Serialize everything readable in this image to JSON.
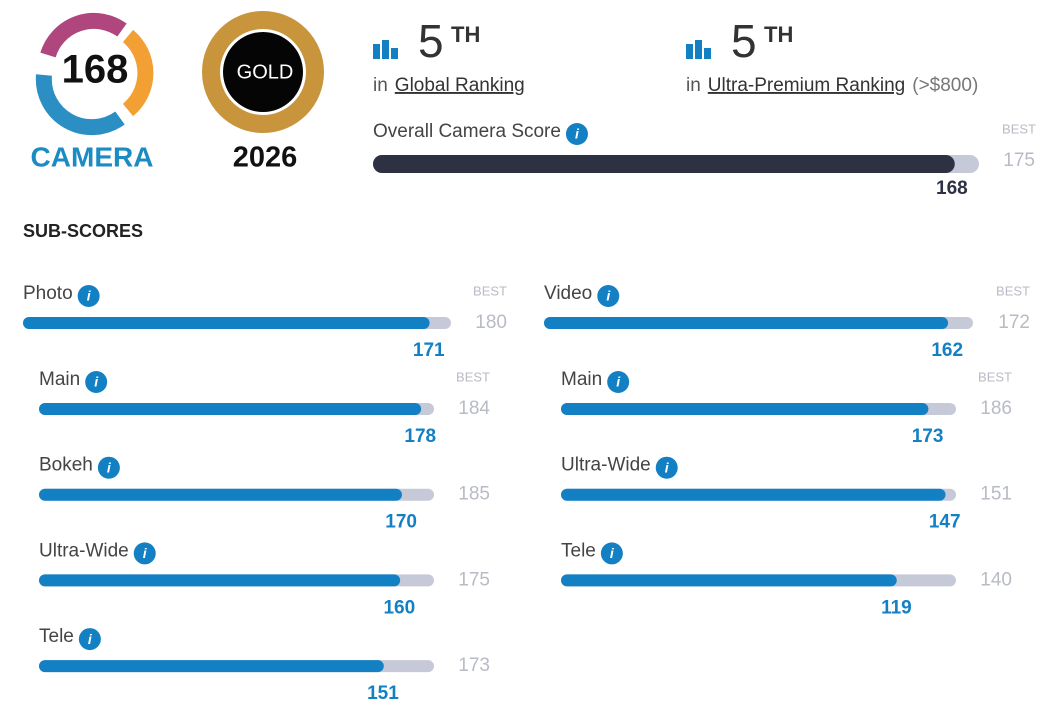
{
  "badges": {
    "camera_score": 168,
    "camera_label": "CAMERA",
    "gold_label": "GOLD",
    "gold_year": 2026
  },
  "rankings": [
    {
      "rank": 5,
      "suffix": "TH",
      "prefix": "in",
      "name": "Global Ranking"
    },
    {
      "rank": 5,
      "suffix": "TH",
      "prefix": "in",
      "name": "Ultra-Premium Ranking",
      "note": "(>$800)"
    }
  ],
  "overall": {
    "label": "Overall Camera Score",
    "best_label": "BEST",
    "best": 175,
    "score": 168
  },
  "subscores_title": "SUB-SCORES",
  "subscores": [
    {
      "label": "Photo",
      "best_label": "BEST",
      "best": 180,
      "score": 171,
      "items": [
        {
          "label": "Main",
          "best_label": "BEST",
          "best": 184,
          "score": 178
        },
        {
          "label": "Bokeh",
          "best": 185,
          "score": 170
        },
        {
          "label": "Ultra-Wide",
          "best": 175,
          "score": 160
        },
        {
          "label": "Tele",
          "best": 173,
          "score": 151
        }
      ]
    },
    {
      "label": "Video",
      "best_label": "BEST",
      "best": 172,
      "score": 162,
      "items": [
        {
          "label": "Main",
          "best_label": "BEST",
          "best": 186,
          "score": 173
        },
        {
          "label": "Ultra-Wide",
          "best": 151,
          "score": 147
        },
        {
          "label": "Tele",
          "best": 140,
          "score": 119
        }
      ]
    }
  ]
}
